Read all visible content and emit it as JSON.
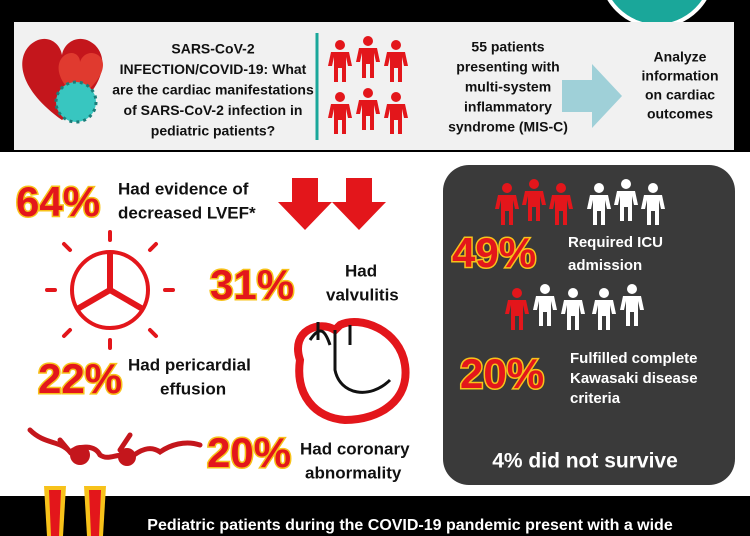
{
  "intro": {
    "question": [
      "SARS-CoV-2",
      "INFECTION/COVID-19: What",
      "are the cardiac manifestations",
      "of SARS-CoV-2 infection in",
      "pediatric patients?"
    ],
    "cohort": [
      "55 patients",
      "presenting with",
      "multi-system",
      "inflammatory",
      "syndrome (MIS-C)"
    ],
    "analysis": [
      "Analyze",
      "information",
      "on cardiac",
      "outcomes"
    ]
  },
  "findings": [
    {
      "percent": "64%",
      "text": [
        "Had evidence of",
        "decreased LVEF*"
      ]
    },
    {
      "percent": "31%",
      "text": [
        "Had",
        "valvulitis"
      ]
    },
    {
      "percent": "22%",
      "text": [
        "Had pericardial",
        "effusion"
      ]
    },
    {
      "percent": "20%",
      "text": [
        "Had coronary",
        "abnormality"
      ]
    }
  ],
  "outcomes": [
    {
      "percent": "49%",
      "text": [
        "Required ICU",
        "admission"
      ]
    },
    {
      "percent": "20%",
      "text": [
        "Fulfilled complete",
        "Kawasaki disease",
        "criteria"
      ]
    }
  ],
  "mortality": "4% did not survive",
  "conclusion": "Pediatric patients during the COVID-19 pandemic present with a wide"
}
